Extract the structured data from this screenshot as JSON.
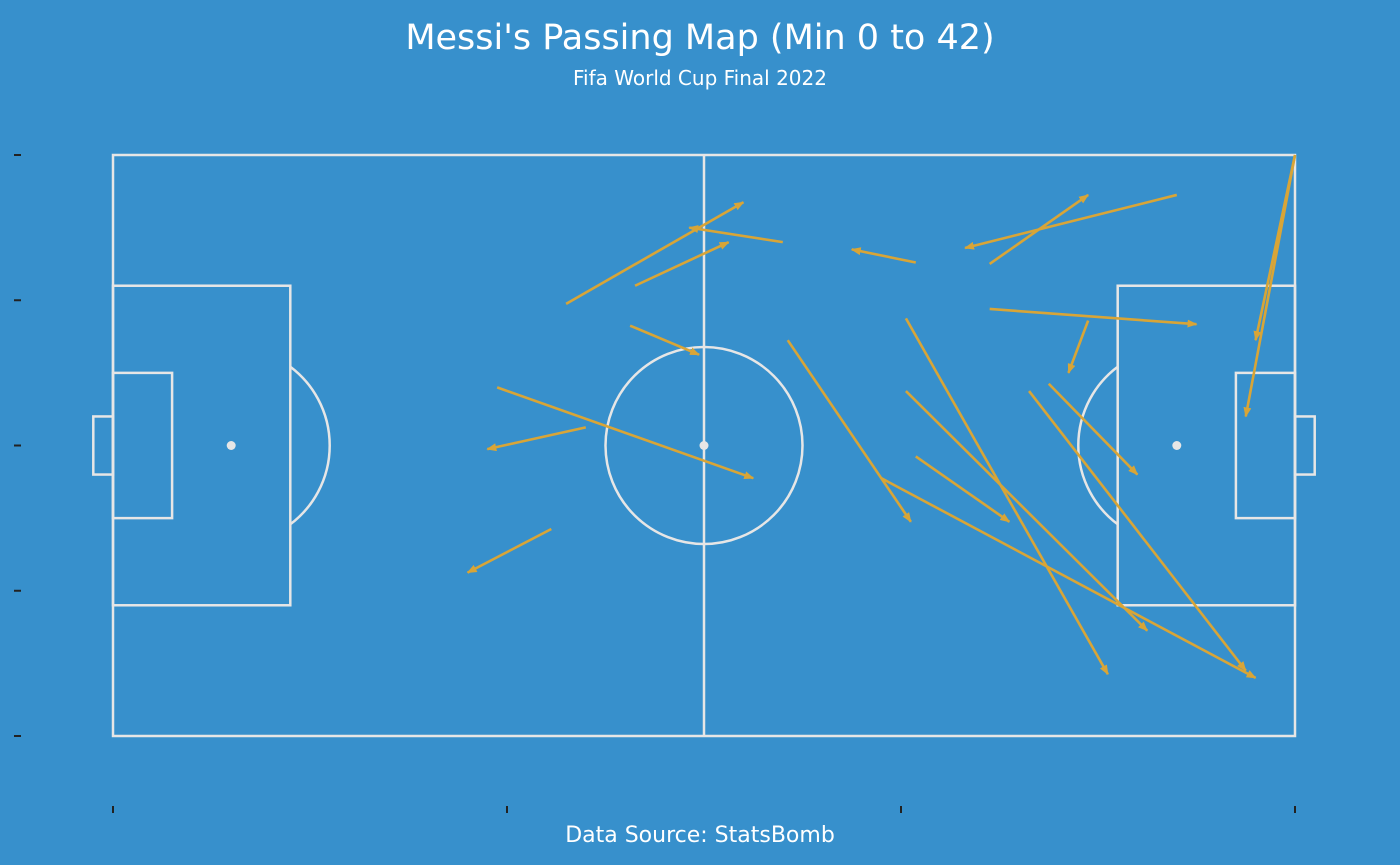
{
  "chart_data": {
    "type": "scatter",
    "title": "Messi's Passing Map (Min 0 to 42)",
    "subtitle": "Fifa World Cup Final 2022",
    "caption": "Data Source: StatsBomb",
    "xlim": [
      0,
      120
    ],
    "ylim": [
      0,
      80
    ],
    "grid": false,
    "colors": {
      "background": "#3790cc",
      "pitch_lines": "#e6e6e6",
      "pass_arrow": "#d8a537",
      "tick": "#222222"
    },
    "passes": [
      {
        "start": [
          46,
          20.5
        ],
        "end": [
          64,
          6.5
        ]
      },
      {
        "start": [
          53,
          18
        ],
        "end": [
          62.5,
          12
        ]
      },
      {
        "start": [
          68,
          12
        ],
        "end": [
          58.5,
          10
        ]
      },
      {
        "start": [
          81.5,
          14.8
        ],
        "end": [
          75,
          13
        ]
      },
      {
        "start": [
          89,
          15
        ],
        "end": [
          99,
          5.5
        ]
      },
      {
        "start": [
          108,
          5.5
        ],
        "end": [
          86.5,
          12.8
        ]
      },
      {
        "start": [
          120,
          0
        ],
        "end": [
          116,
          25.5
        ]
      },
      {
        "start": [
          120,
          0
        ],
        "end": [
          115,
          36
        ]
      },
      {
        "start": [
          89,
          21.2
        ],
        "end": [
          110,
          23.3
        ]
      },
      {
        "start": [
          99,
          22.8
        ],
        "end": [
          97,
          30
        ]
      },
      {
        "start": [
          52.5,
          23.5
        ],
        "end": [
          59.5,
          27.5
        ]
      },
      {
        "start": [
          68.5,
          25.5
        ],
        "end": [
          81,
          50.5
        ]
      },
      {
        "start": [
          80.5,
          22.5
        ],
        "end": [
          101,
          71.5
        ]
      },
      {
        "start": [
          80.5,
          32.5
        ],
        "end": [
          105,
          65.5
        ]
      },
      {
        "start": [
          81.5,
          41.5
        ],
        "end": [
          91,
          50.5
        ]
      },
      {
        "start": [
          78,
          44.5
        ],
        "end": [
          116,
          72
        ]
      },
      {
        "start": [
          93,
          32.5
        ],
        "end": [
          115,
          71
        ]
      },
      {
        "start": [
          95,
          31.5
        ],
        "end": [
          104,
          44
        ]
      },
      {
        "start": [
          39,
          32
        ],
        "end": [
          65,
          44.5
        ]
      },
      {
        "start": [
          48,
          37.5
        ],
        "end": [
          38,
          40.5
        ]
      },
      {
        "start": [
          44.5,
          51.5
        ],
        "end": [
          36,
          57.5
        ]
      }
    ]
  }
}
